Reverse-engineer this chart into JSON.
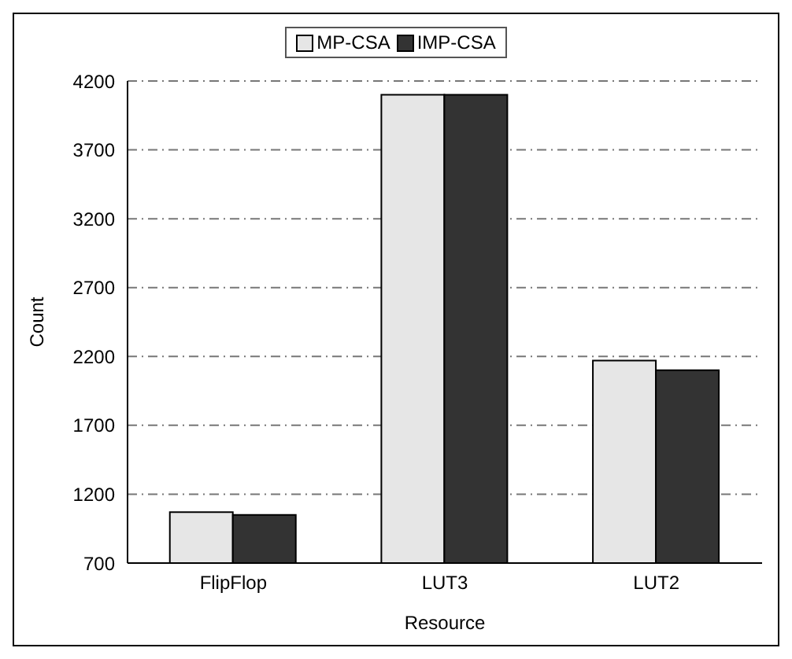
{
  "chart_data": {
    "type": "bar",
    "xlabel": "Resource",
    "ylabel": "Count",
    "categories": [
      "FlipFlop",
      "LUT3",
      "LUT2"
    ],
    "series": [
      {
        "name": "MP-CSA",
        "color": "#e6e6e6",
        "values": [
          1070,
          4100,
          2170
        ]
      },
      {
        "name": "IMP-CSA",
        "color": "#333333",
        "values": [
          1050,
          4100,
          2100
        ]
      }
    ],
    "ylim": [
      700,
      4200
    ],
    "yticks": [
      700,
      1200,
      1700,
      2200,
      2700,
      3200,
      3700,
      4200
    ],
    "grid": "y",
    "legend": "top"
  }
}
